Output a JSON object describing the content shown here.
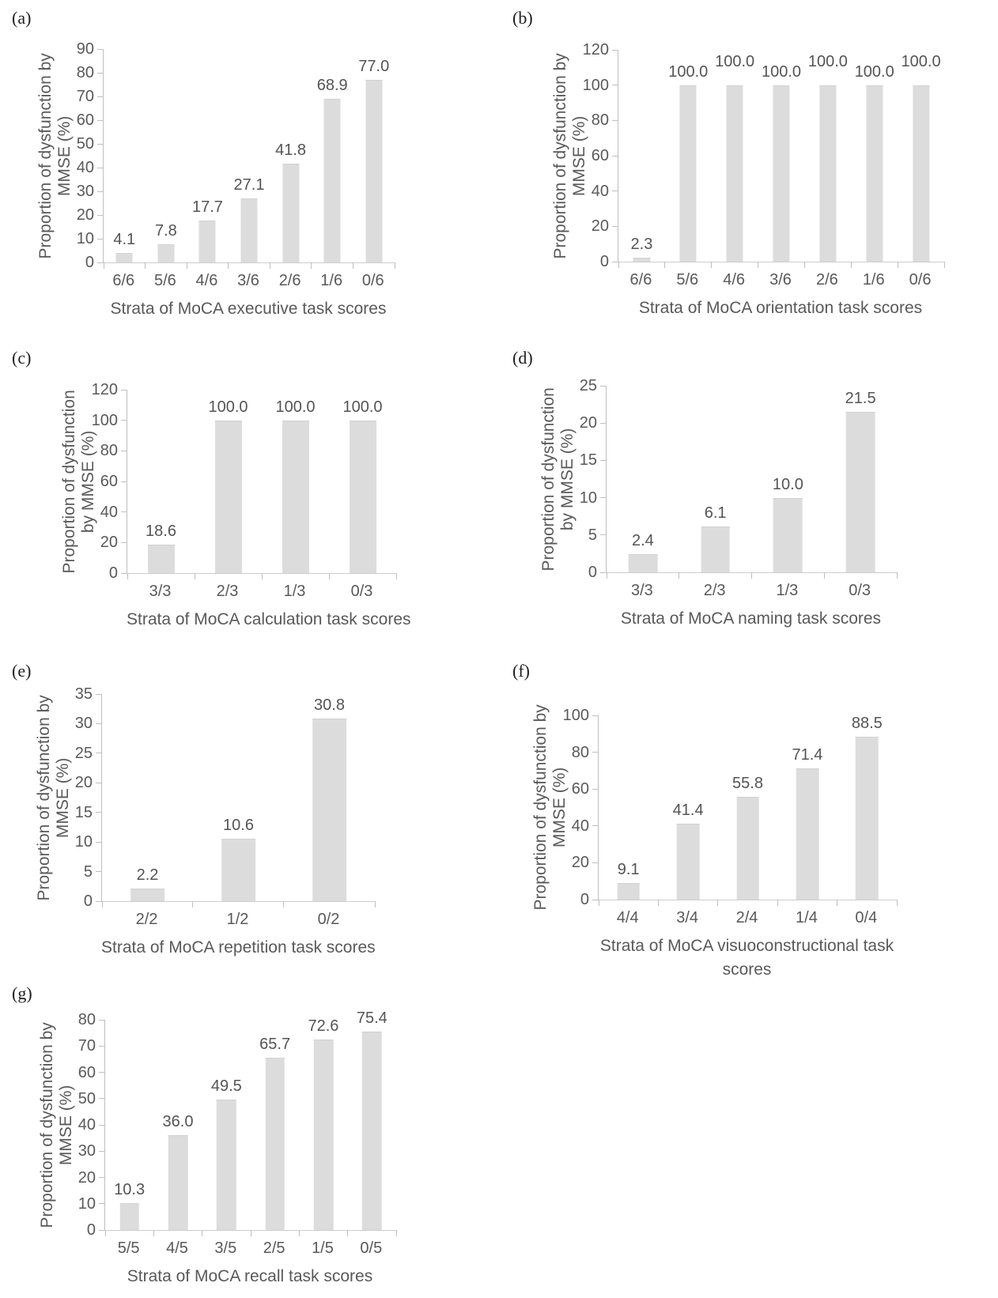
{
  "figure": {
    "description": "Seven panel bar figure (a)-(g): proportion of dysfunction by MMSE across strata of MoCA task scores",
    "colors": {
      "bar_fill": "#dcdcdc",
      "axis_line": "#bfbfbf",
      "text": "#595959",
      "background": "#ffffff"
    }
  },
  "chart_data": [
    {
      "panel": "(a)",
      "type": "bar",
      "categories": [
        "6/6",
        "5/6",
        "4/6",
        "3/6",
        "2/6",
        "1/6",
        "0/6"
      ],
      "values": [
        4.1,
        7.8,
        17.7,
        27.1,
        41.8,
        68.9,
        77.0
      ],
      "data_labels": [
        "4.1",
        "7.8",
        "17.7",
        "27.1",
        "41.8",
        "68.9",
        "77.0"
      ],
      "xlabel": "Strata of MoCA executive task scores",
      "xlabel_lines": [
        "Strata of MoCA executive task scores"
      ],
      "ylabel": "Proportion of dysfunction by MMSE (%)",
      "ylabel_lines": [
        "Proportion of dysfunction by",
        "MMSE (%)"
      ],
      "ylim": [
        0,
        90
      ],
      "ytick_step": 10,
      "raised_label_indices": [],
      "grid": false,
      "legend": false
    },
    {
      "panel": "(b)",
      "type": "bar",
      "categories": [
        "6/6",
        "5/6",
        "4/6",
        "3/6",
        "2/6",
        "1/6",
        "0/6"
      ],
      "values": [
        2.3,
        100.0,
        100.0,
        100.0,
        100.0,
        100.0,
        100.0
      ],
      "data_labels": [
        "2.3",
        "100.0",
        "100.0",
        "100.0",
        "100.0",
        "100.0",
        "100.0"
      ],
      "xlabel": "Strata of MoCA orientation task scores",
      "xlabel_lines": [
        "Strata of MoCA orientation task scores"
      ],
      "ylabel": "Proportion of dysfunction by MMSE (%)",
      "ylabel_lines": [
        "Proportion of dysfunction by",
        "MMSE (%)"
      ],
      "ylim": [
        0,
        120
      ],
      "ytick_step": 20,
      "raised_label_indices": [
        2,
        4,
        6
      ],
      "grid": false,
      "legend": false
    },
    {
      "panel": "(c)",
      "type": "bar",
      "categories": [
        "3/3",
        "2/3",
        "1/3",
        "0/3"
      ],
      "values": [
        18.6,
        100.0,
        100.0,
        100.0
      ],
      "data_labels": [
        "18.6",
        "100.0",
        "100.0",
        "100.0"
      ],
      "xlabel": "Strata of MoCA calculation task scores",
      "xlabel_lines": [
        "Strata of MoCA calculation task scores"
      ],
      "ylabel": "Proportion of dysfunction by MMSE (%)",
      "ylabel_lines": [
        "Proportion of dysfunction",
        "by MMSE (%)"
      ],
      "ylim": [
        0,
        120
      ],
      "ytick_step": 20,
      "raised_label_indices": [],
      "grid": false,
      "legend": false
    },
    {
      "panel": "(d)",
      "type": "bar",
      "categories": [
        "3/3",
        "2/3",
        "1/3",
        "0/3"
      ],
      "values": [
        2.4,
        6.1,
        10.0,
        21.5
      ],
      "data_labels": [
        "2.4",
        "6.1",
        "10.0",
        "21.5"
      ],
      "xlabel": "Strata of MoCA naming task scores",
      "xlabel_lines": [
        "Strata of MoCA naming task scores"
      ],
      "ylabel": "Proportion of dysfunction by MMSE (%)",
      "ylabel_lines": [
        "Proportion of dysfunction",
        "by MMSE (%)"
      ],
      "ylim": [
        0,
        25
      ],
      "ytick_step": 5,
      "raised_label_indices": [],
      "grid": false,
      "legend": false
    },
    {
      "panel": "(e)",
      "type": "bar",
      "categories": [
        "2/2",
        "1/2",
        "0/2"
      ],
      "values": [
        2.2,
        10.6,
        30.8
      ],
      "data_labels": [
        "2.2",
        "10.6",
        "30.8"
      ],
      "xlabel": "Strata of MoCA repetition task scores",
      "xlabel_lines": [
        "Strata of MoCA repetition task scores"
      ],
      "ylabel": "Proportion of dysfunction by MMSE (%)",
      "ylabel_lines": [
        "Proportion of dysfunction by",
        "MMSE (%)"
      ],
      "ylim": [
        0,
        35
      ],
      "ytick_step": 5,
      "raised_label_indices": [],
      "grid": false,
      "legend": false
    },
    {
      "panel": "(f)",
      "type": "bar",
      "categories": [
        "4/4",
        "3/4",
        "2/4",
        "1/4",
        "0/4"
      ],
      "values": [
        9.1,
        41.4,
        55.8,
        71.4,
        88.5
      ],
      "data_labels": [
        "9.1",
        "41.4",
        "55.8",
        "71.4",
        "88.5"
      ],
      "xlabel": "Strata of MoCA visuoconstructional task scores",
      "xlabel_lines": [
        "Strata of MoCA visuoconstructional task",
        "scores"
      ],
      "ylabel": "Proportion of dysfunction by MMSE (%)",
      "ylabel_lines": [
        "Proportion of dysfunction by",
        "MMSE (%)"
      ],
      "ylim": [
        0,
        100
      ],
      "ytick_step": 20,
      "raised_label_indices": [],
      "grid": false,
      "legend": false
    },
    {
      "panel": "(g)",
      "type": "bar",
      "categories": [
        "5/5",
        "4/5",
        "3/5",
        "2/5",
        "1/5",
        "0/5"
      ],
      "values": [
        10.3,
        36.0,
        49.5,
        65.7,
        72.6,
        75.4
      ],
      "data_labels": [
        "10.3",
        "36.0",
        "49.5",
        "65.7",
        "72.6",
        "75.4"
      ],
      "xlabel": "Strata of MoCA recall task scores",
      "xlabel_lines": [
        "Strata of MoCA recall task scores"
      ],
      "ylabel": "Proportion of dysfunction by MMSE (%)",
      "ylabel_lines": [
        "Proportion of dysfunction by",
        "MMSE (%)"
      ],
      "ylim": [
        0,
        80
      ],
      "ytick_step": 10,
      "raised_label_indices": [],
      "grid": false,
      "legend": false
    }
  ]
}
